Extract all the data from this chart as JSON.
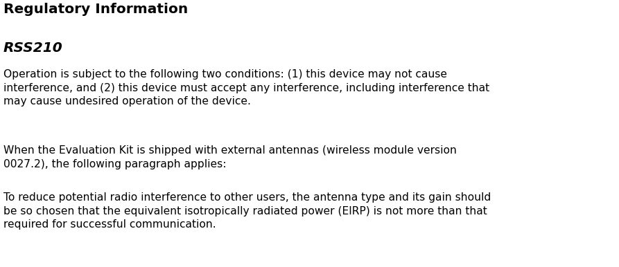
{
  "background_color": "#ffffff",
  "title": "Regulatory Information",
  "subtitle": "RSS210",
  "paragraph1": "Operation is subject to the following two conditions: (1) this device may not cause\ninterference, and (2) this device must accept any interference, including interference that\nmay cause undesired operation of the device.",
  "paragraph2": "When the Evaluation Kit is shipped with external antennas (wireless module version\n0027.2), the following paragraph applies:",
  "paragraph3": "To reduce potential radio interference to other users, the antenna type and its gain should\nbe so chosen that the equivalent isotropically radiated power (EIRP) is not more than that\nrequired for successful communication.",
  "title_fontsize": 14.5,
  "subtitle_fontsize": 14.5,
  "body_fontsize": 11.2,
  "text_color": "#000000",
  "fig_width": 8.93,
  "fig_height": 3.86,
  "dpi": 100
}
